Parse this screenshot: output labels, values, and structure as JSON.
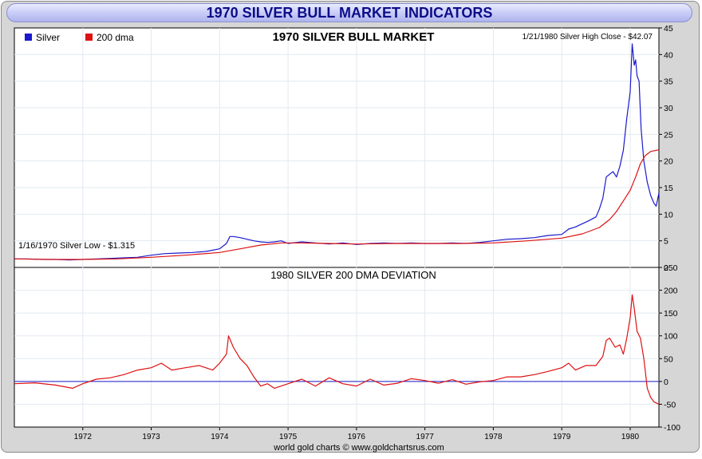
{
  "header": {
    "title": "1970 SILVER BULL MARKET INDICATORS"
  },
  "footer": {
    "credit": "world gold charts © www.goldchartsrus.com"
  },
  "x_axis": {
    "tick_labels": [
      "1972",
      "1973",
      "1974",
      "1975",
      "1976",
      "1977",
      "1978",
      "1979",
      "1980"
    ],
    "start_year": 1971.0,
    "end_year": 1980.42
  },
  "chart_data": [
    {
      "type": "line",
      "title": "1970 SILVER BULL MARKET",
      "legend": {
        "placement": "top-left",
        "entries": [
          {
            "name": "Silver",
            "color": "#1a1acc"
          },
          {
            "name": "200 dma",
            "color": "#dd1111"
          }
        ]
      },
      "annotations": {
        "high": "1/21/1980 Silver High Close - $42.07",
        "low": "1/16/1970 Silver Low - $1.315"
      },
      "y_ticks": [
        "0",
        "5",
        "10",
        "15",
        "20",
        "25",
        "30",
        "35",
        "40",
        "45"
      ],
      "ylim": [
        0,
        45
      ],
      "grid": true,
      "series": [
        {
          "name": "Silver",
          "color": "#1a1acc",
          "x": [
            1971.0,
            1971.2,
            1971.4,
            1971.6,
            1971.8,
            1972.0,
            1972.2,
            1972.4,
            1972.6,
            1972.8,
            1973.0,
            1973.2,
            1973.4,
            1973.6,
            1973.8,
            1974.0,
            1974.1,
            1974.15,
            1974.2,
            1974.3,
            1974.4,
            1974.5,
            1974.6,
            1974.7,
            1974.8,
            1974.9,
            1975.0,
            1975.2,
            1975.4,
            1975.6,
            1975.8,
            1976.0,
            1976.2,
            1976.4,
            1976.6,
            1976.8,
            1977.0,
            1977.2,
            1977.4,
            1977.6,
            1977.8,
            1978.0,
            1978.2,
            1978.4,
            1978.6,
            1978.8,
            1979.0,
            1979.1,
            1979.2,
            1979.3,
            1979.4,
            1979.5,
            1979.55,
            1979.6,
            1979.65,
            1979.7,
            1979.75,
            1979.8,
            1979.85,
            1979.9,
            1979.95,
            1980.0,
            1980.03,
            1980.06,
            1980.08,
            1980.1,
            1980.13,
            1980.16,
            1980.2,
            1980.25,
            1980.3,
            1980.35,
            1980.38,
            1980.42
          ],
          "values": [
            1.6,
            1.6,
            1.5,
            1.5,
            1.4,
            1.5,
            1.6,
            1.7,
            1.8,
            1.9,
            2.3,
            2.6,
            2.7,
            2.8,
            3.0,
            3.5,
            4.5,
            5.8,
            5.8,
            5.6,
            5.3,
            5.0,
            4.8,
            4.7,
            4.8,
            5.0,
            4.5,
            4.8,
            4.6,
            4.4,
            4.6,
            4.3,
            4.5,
            4.6,
            4.5,
            4.6,
            4.5,
            4.5,
            4.6,
            4.5,
            4.7,
            5.0,
            5.3,
            5.4,
            5.6,
            6.0,
            6.2,
            7.2,
            7.6,
            8.2,
            8.8,
            9.5,
            11.0,
            13.0,
            17.0,
            17.5,
            18.0,
            17.0,
            19.0,
            22.0,
            28.0,
            33.0,
            42.0,
            38.0,
            39.0,
            36.0,
            35.0,
            26.0,
            20.0,
            16.0,
            13.5,
            12.0,
            11.5,
            14.0
          ]
        },
        {
          "name": "200 dma",
          "color": "#dd1111",
          "x": [
            1971.0,
            1971.5,
            1972.0,
            1972.5,
            1973.0,
            1973.5,
            1974.0,
            1974.3,
            1974.6,
            1974.9,
            1975.2,
            1975.6,
            1976.0,
            1976.5,
            1977.0,
            1977.5,
            1978.0,
            1978.5,
            1979.0,
            1979.3,
            1979.55,
            1979.7,
            1979.8,
            1979.9,
            1980.0,
            1980.08,
            1980.15,
            1980.22,
            1980.3,
            1980.42
          ],
          "values": [
            1.6,
            1.5,
            1.5,
            1.6,
            1.9,
            2.3,
            2.8,
            3.5,
            4.2,
            4.6,
            4.6,
            4.5,
            4.4,
            4.5,
            4.5,
            4.5,
            4.6,
            5.0,
            5.5,
            6.3,
            7.5,
            9.0,
            10.5,
            12.5,
            14.5,
            17.0,
            19.5,
            21.0,
            21.8,
            22.1
          ]
        }
      ]
    },
    {
      "type": "line",
      "title": "1980 SILVER 200 DMA DEVIATION",
      "y_ticks": [
        "-100",
        "-50",
        "0",
        "50",
        "100",
        "150",
        "200",
        "250"
      ],
      "ylim": [
        -100,
        250
      ],
      "grid": true,
      "series": [
        {
          "name": "deviation",
          "color": "#dd1111",
          "x": [
            1971.0,
            1971.3,
            1971.6,
            1971.85,
            1972.0,
            1972.2,
            1972.4,
            1972.6,
            1972.8,
            1973.0,
            1973.15,
            1973.3,
            1973.5,
            1973.7,
            1973.9,
            1974.0,
            1974.1,
            1974.13,
            1974.2,
            1974.3,
            1974.4,
            1974.5,
            1974.6,
            1974.7,
            1974.8,
            1975.0,
            1975.2,
            1975.4,
            1975.6,
            1975.8,
            1976.0,
            1976.2,
            1976.4,
            1976.6,
            1976.8,
            1977.0,
            1977.2,
            1977.4,
            1977.6,
            1977.8,
            1978.0,
            1978.2,
            1978.4,
            1978.6,
            1978.8,
            1979.0,
            1979.1,
            1979.2,
            1979.35,
            1979.5,
            1979.6,
            1979.65,
            1979.7,
            1979.78,
            1979.85,
            1979.9,
            1979.95,
            1980.0,
            1980.03,
            1980.06,
            1980.1,
            1980.15,
            1980.2,
            1980.25,
            1980.3,
            1980.35,
            1980.42
          ],
          "values": [
            -5,
            -3,
            -8,
            -15,
            -5,
            5,
            8,
            15,
            25,
            30,
            40,
            25,
            30,
            35,
            25,
            40,
            60,
            100,
            75,
            50,
            35,
            10,
            -10,
            -5,
            -15,
            -5,
            5,
            -10,
            8,
            -5,
            -10,
            5,
            -8,
            -4,
            6,
            2,
            -4,
            4,
            -6,
            -1,
            2,
            10,
            10,
            15,
            22,
            30,
            40,
            25,
            35,
            35,
            55,
            90,
            95,
            75,
            80,
            60,
            95,
            140,
            190,
            160,
            110,
            95,
            50,
            -15,
            -35,
            -45,
            -50
          ]
        }
      ]
    }
  ]
}
